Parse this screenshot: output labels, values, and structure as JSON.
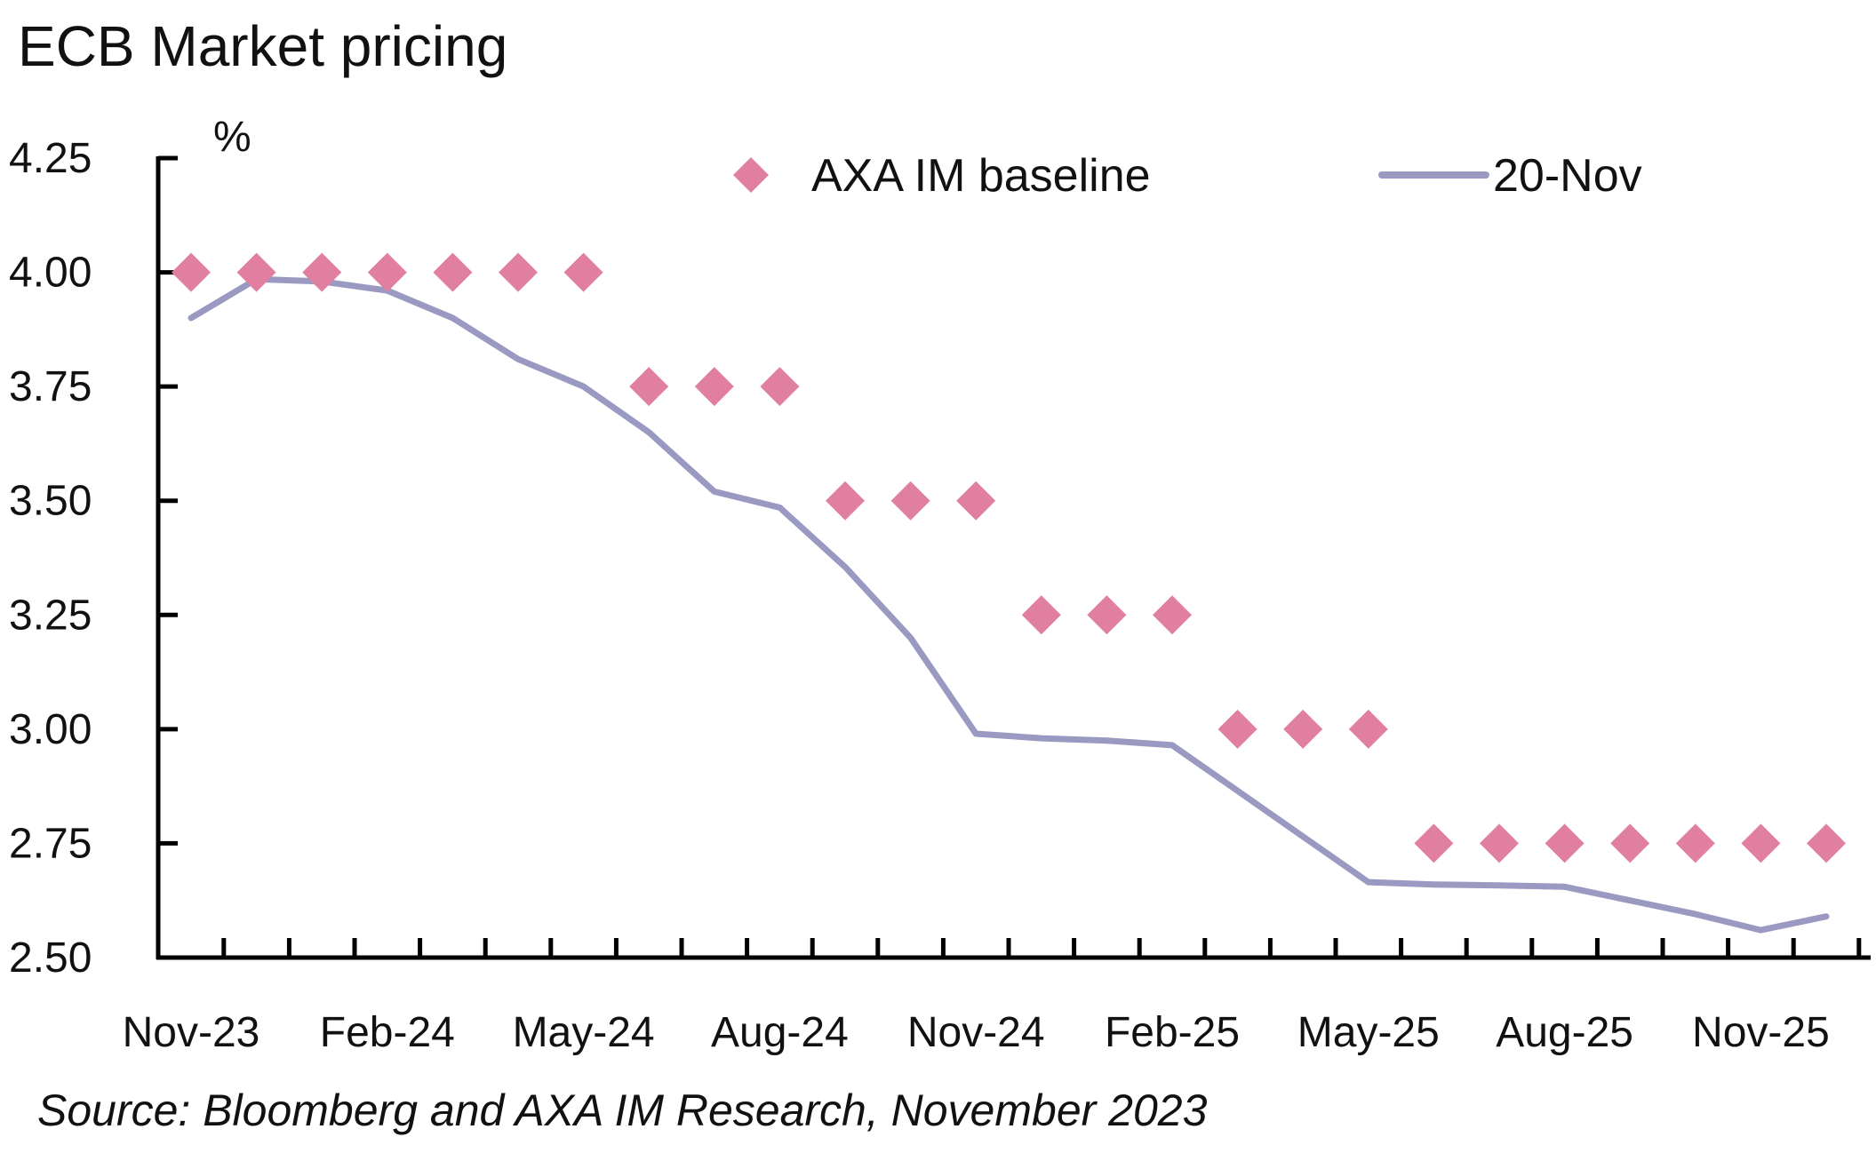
{
  "chart_data": {
    "type": "line",
    "title": "ECB Market pricing",
    "source": "Source: Bloomberg and AXA IM Research, November 2023",
    "ylabel": "%",
    "xlabel": "",
    "ylim": [
      2.5,
      4.25
    ],
    "yticks": [
      2.5,
      2.75,
      3.0,
      3.25,
      3.5,
      3.75,
      4.0,
      4.25
    ],
    "ytick_labels": [
      "2.50",
      "2.75",
      "3.00",
      "3.25",
      "3.50",
      "3.75",
      "4.00",
      "4.25"
    ],
    "categories": [
      "Nov-23",
      "Dec-23",
      "Jan-24",
      "Feb-24",
      "Mar-24",
      "Apr-24",
      "May-24",
      "Jun-24",
      "Jul-24",
      "Aug-24",
      "Sep-24",
      "Oct-24",
      "Nov-24",
      "Dec-24",
      "Jan-25",
      "Feb-25",
      "Mar-25",
      "Apr-25",
      "May-25",
      "Jun-25",
      "Jul-25",
      "Aug-25",
      "Sep-25",
      "Oct-25",
      "Nov-25",
      "Dec-25"
    ],
    "xtick_labels": [
      "Nov-23",
      "Feb-24",
      "May-24",
      "Aug-24",
      "Nov-24",
      "Feb-25",
      "May-25",
      "Aug-25",
      "Nov-25"
    ],
    "legend_position": "top-right",
    "grid": false,
    "series": [
      {
        "name": "AXA IM baseline",
        "style": "markers",
        "marker": "diamond",
        "color": "#E07FA0",
        "values": [
          4.0,
          4.0,
          4.0,
          4.0,
          4.0,
          4.0,
          4.0,
          3.75,
          3.75,
          3.75,
          3.5,
          3.5,
          3.5,
          3.25,
          3.25,
          3.25,
          3.0,
          3.0,
          3.0,
          2.75,
          2.75,
          2.75,
          2.75,
          2.75,
          2.75,
          2.75
        ]
      },
      {
        "name": "20-Nov",
        "style": "line",
        "color": "#9999C2",
        "values": [
          3.9,
          3.985,
          3.98,
          3.96,
          3.9,
          3.81,
          3.75,
          3.65,
          3.52,
          3.485,
          3.355,
          3.2,
          2.99,
          2.98,
          2.975,
          2.965,
          2.865,
          2.765,
          2.665,
          2.66,
          2.658,
          2.655,
          2.625,
          2.595,
          2.56,
          2.59
        ]
      }
    ]
  }
}
